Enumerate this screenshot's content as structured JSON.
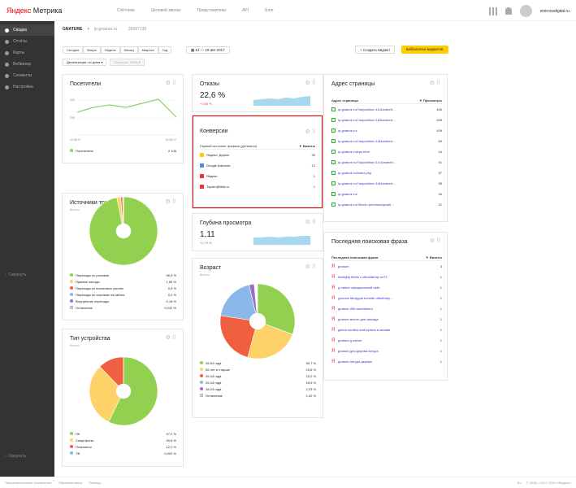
{
  "header": {
    "logo_brand": "Яндекс",
    "logo_product": "Метрика",
    "nav": [
      "Счётчики",
      "Целевой звонок",
      "Представители",
      "API",
      "Блог"
    ],
    "username": "smirnovdigital.ru"
  },
  "sidebar": {
    "items": [
      "Сводка",
      "Отчёты",
      "Карты",
      "Вебвизор",
      "Сегменты",
      "Настройка"
    ],
    "collapse_mid": "Свернуть",
    "collapse_bottom": "Свернуть"
  },
  "breadcrumb": {
    "name": "GNATURE",
    "site": "lp-gnature.ru",
    "id": "39587130"
  },
  "toolbar": {
    "periods": [
      "Сегодня",
      "Вчера",
      "Неделя",
      "Месяц",
      "Квартал",
      "Год"
    ],
    "date_range": "12 — 19 авг 2017",
    "detail": "Детализация: по дням",
    "accuracy": "Точность: 100%",
    "create_widget": "+ Создать виджет",
    "library": "Библиотека виджетов"
  },
  "visitors": {
    "title": "Посетители",
    "y_top": "400",
    "y_mid": "200",
    "x_start": "13.08.17",
    "x_end": "19.08.17",
    "legend_label": "Посетители",
    "legend_value": "2 106",
    "accent": "#8ad26b"
  },
  "traffic": {
    "title": "Источники трафика",
    "sub": "Визиты",
    "items": [
      {
        "label": "Переходы по рекламе",
        "value": "96,9 %",
        "color": "#92d050",
        "pct": 96.9
      },
      {
        "label": "Прямые заходы",
        "value": "1,84 %",
        "color": "#fdd268",
        "pct": 1.84
      },
      {
        "label": "Переходы из поисковых систем",
        "value": "0,9 %",
        "color": "#f06040",
        "pct": 0.9
      },
      {
        "label": "Переходы по ссылкам на сайтах",
        "value": "0,2 %",
        "color": "#8ab8e8",
        "pct": 0.2
      },
      {
        "label": "Внутренние переходы",
        "value": "0,18 %",
        "color": "#9b6fc9",
        "pct": 0.18
      },
      {
        "label": "Остальные",
        "value": "0,041 %",
        "color": "#ffffff",
        "pct": 0.041
      }
    ]
  },
  "devices": {
    "title": "Тип устройства",
    "sub": "Визиты",
    "items": [
      {
        "label": "ПК",
        "value": "57,2 %",
        "color": "#92d050",
        "pct": 57.2
      },
      {
        "label": "Смартфоны",
        "value": "30,6 %",
        "color": "#fdd268",
        "pct": 30.6
      },
      {
        "label": "Планшеты",
        "value": "12,2 %",
        "color": "#f06040",
        "pct": 12.2
      },
      {
        "label": "ТВ",
        "value": "0,002 %",
        "color": "#8ab8e8",
        "pct": 0.002
      }
    ]
  },
  "bounces": {
    "title": "Отказы",
    "value": "22,6 %",
    "delta": "+3,85 %"
  },
  "conversions": {
    "title": "Конверсии",
    "col1": "Первый источник трафика (детально)",
    "col2": "▼ Визиты",
    "rows": [
      {
        "label": "Яндекс: Директ",
        "value": "30",
        "icon": "yandex-direct-icon",
        "color": "#fc0"
      },
      {
        "label": "Google Adwords",
        "value": "12",
        "icon": "google-adwords-icon",
        "color": "#4a8af4"
      },
      {
        "label": "Яндекс",
        "value": "1",
        "icon": "yandex-icon",
        "color": "#e33"
      },
      {
        "label": "Таргет@Mail.ru",
        "value": "1",
        "icon": "mailru-icon",
        "color": "#e33"
      }
    ]
  },
  "depth": {
    "title": "Глубина просмотра",
    "value": "1,11",
    "delta": "+2,79 %"
  },
  "age": {
    "title": "Возраст",
    "sub": "Визиты",
    "items": [
      {
        "label": "45-54 года",
        "value": "30,7 %",
        "color": "#92d050",
        "pct": 30.7
      },
      {
        "label": "55 лет и старше",
        "value": "23,6 %",
        "color": "#fdd268",
        "pct": 23.6
      },
      {
        "label": "35-44 года",
        "value": "23,2 %",
        "color": "#f06040",
        "pct": 23.2
      },
      {
        "label": "25-34 года",
        "value": "18,9 %",
        "color": "#8ab8e8",
        "pct": 18.9
      },
      {
        "label": "18-24 года",
        "value": "2,23 %",
        "color": "#9b6fc9",
        "pct": 2.23
      },
      {
        "label": "Остальные",
        "value": "1,42 %",
        "color": "#ffffff",
        "pct": 1.42
      }
    ]
  },
  "pages": {
    "title": "Адрес страницы",
    "col1": "Адрес страницы",
    "col2": "▼ Просмотры",
    "rows": [
      {
        "label": "lp-gnature.ru/?adposition=1t1&matcht…",
        "value": "446"
      },
      {
        "label": "lp-gnature.ru/?adposition=1t2&matcht…",
        "value": "208"
      },
      {
        "label": "lp-gnature.ru/",
        "value": "109"
      },
      {
        "label": "lp-gnature.ru/?adposition=1t3&matcht…",
        "value": "69"
      },
      {
        "label": "lp-gnature.ru/sps.html",
        "value": "44"
      },
      {
        "label": "lp-gnature.ru/?adposition=1c1&matcht…",
        "value": "41"
      },
      {
        "label": "lp-gnature.ru/index.php",
        "value": "37"
      },
      {
        "label": "lp-gnature.ru/?adposition=1t4&matcht…",
        "value": "35"
      },
      {
        "label": "lp-gnature.ru/",
        "value": "34"
      },
      {
        "label": "lp-gnature.ru/?block=premium&positi…",
        "value": "31"
      }
    ]
  },
  "phrases": {
    "title": "Последняя поисковая фраза",
    "col1": "Последняя поисковая фраза",
    "col2": "▼ Визиты",
    "rows": [
      {
        "label": "gnature",
        "value": "3"
      },
      {
        "label": "hhbbjkbj fhfcfb c cfhnbdbrhjv wr71",
        "value": "1"
      },
      {
        "label": "g-nature официальный сайт",
        "value": "1"
      },
      {
        "label": "gdvionn tfihdjyyat bohedh ufbnfbfnly…",
        "value": "1"
      },
      {
        "label": "gnature 450 wachdsteur",
        "value": "1"
      },
      {
        "label": "gnature масло для фасада",
        "value": "1"
      },
      {
        "label": "gacca nordica matt купить в москве",
        "value": "1"
      },
      {
        "label": "gnatura g nature",
        "value": "1"
      },
      {
        "label": "gnature для дерева натура",
        "value": "1"
      },
      {
        "label": "gnature натура дерева",
        "value": "1"
      }
    ]
  },
  "footer": {
    "links": [
      "Пользовательское соглашение",
      "Обратная связь",
      "Помощь"
    ],
    "lang": "Ru",
    "copyright": "© 2008—2017 ООО «Яндекс»"
  }
}
